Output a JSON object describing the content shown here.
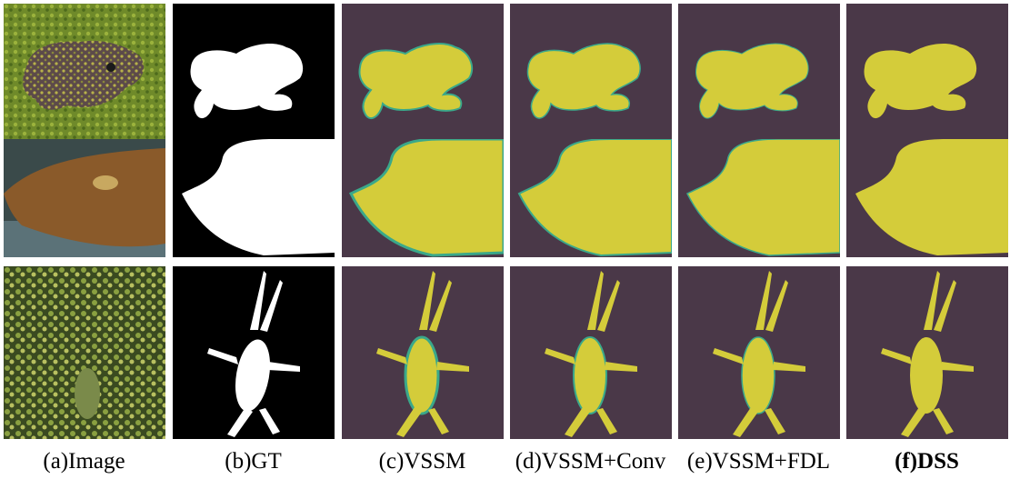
{
  "figure": {
    "columns": [
      {
        "key": "image",
        "caption": "(a)Image",
        "bold": false
      },
      {
        "key": "gt",
        "caption": "(b)GT",
        "bold": false
      },
      {
        "key": "vssm",
        "caption": "(c)VSSM",
        "bold": false
      },
      {
        "key": "vssm_conv",
        "caption": "(d)VSSM+Conv",
        "bold": false
      },
      {
        "key": "vssm_fdl",
        "caption": "(e)VSSM+FDL",
        "bold": false
      },
      {
        "key": "dss",
        "caption": "(f)DSS",
        "bold": true
      }
    ],
    "rows": [
      "frog-on-moss",
      "stingray-on-seabed",
      "insect-on-moss"
    ],
    "colors": {
      "mask_fg": "#ffffff",
      "mask_bg": "#000000",
      "overlay_fg": "#d4cc3a",
      "overlay_bg": "#4a3848",
      "edge": "#3aa88a"
    }
  }
}
